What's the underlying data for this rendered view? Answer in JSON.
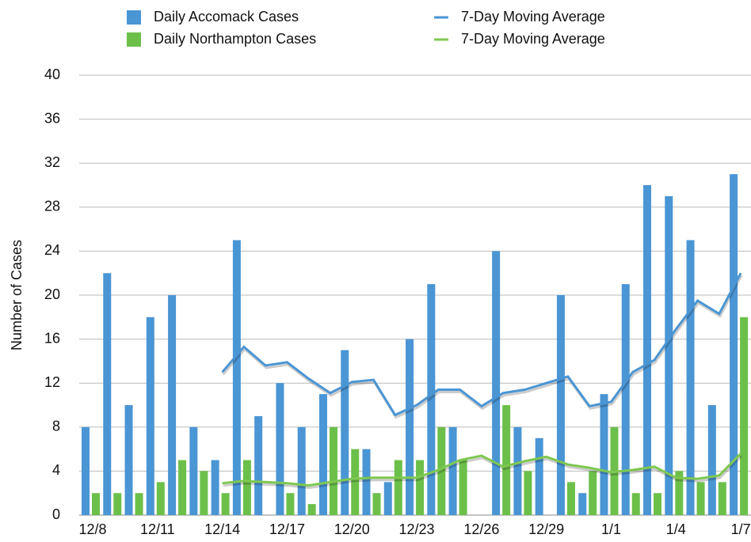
{
  "chart_data": {
    "type": "bar_line",
    "y_label": "Number of Cases",
    "categories": [
      "12/8",
      null,
      null,
      "12/11",
      null,
      null,
      "12/14",
      null,
      null,
      "12/17",
      null,
      null,
      "12/20",
      null,
      null,
      "12/23",
      null,
      null,
      "12/26",
      null,
      null,
      "12/29",
      null,
      null,
      "1/1",
      null,
      null,
      "1/4",
      null,
      null,
      "1/7"
    ],
    "series": [
      {
        "name": "Daily Accomack Cases",
        "kind": "bar",
        "color": "#4a95d4",
        "values": [
          8,
          22,
          10,
          18,
          20,
          8,
          5,
          25,
          9,
          12,
          8,
          11,
          15,
          6,
          3,
          16,
          21,
          8,
          0,
          24,
          8,
          7,
          20,
          2,
          11,
          21,
          30,
          29,
          25,
          10,
          31
        ]
      },
      {
        "name": "Daily Northampton Cases",
        "kind": "bar",
        "color": "#6cc04a",
        "values": [
          2,
          2,
          2,
          3,
          5,
          4,
          2,
          5,
          0,
          2,
          1,
          8,
          6,
          2,
          5,
          5,
          8,
          5,
          0,
          10,
          4,
          0,
          3,
          4,
          8,
          2,
          2,
          4,
          3,
          3,
          18
        ]
      },
      {
        "name": "7-Day Moving Average",
        "kind": "line",
        "color": "#4a95d4",
        "values": [
          null,
          null,
          null,
          null,
          null,
          null,
          13,
          15.3,
          13.6,
          13.9,
          12.4,
          11.1,
          12.1,
          12.3,
          9.1,
          10,
          11.4,
          11.4,
          9.9,
          11.1,
          11.4,
          12,
          12.6,
          9.9,
          10.3,
          13,
          14.1,
          16.9,
          19.5,
          18.3,
          22
        ]
      },
      {
        "name": "7-Day Moving Average",
        "kind": "line",
        "color": "#7ec850",
        "values": [
          null,
          null,
          null,
          null,
          null,
          null,
          2.9,
          3.1,
          3,
          2.9,
          2.7,
          3,
          3.3,
          3.4,
          3.4,
          3.4,
          4.1,
          5,
          5.4,
          4.4,
          4.9,
          5.3,
          4.6,
          4.3,
          3.9,
          4.1,
          4.4,
          3.4,
          3.3,
          3.6,
          5.6
        ]
      }
    ],
    "ylim": [
      0,
      40
    ],
    "yticks": [
      0,
      4,
      8,
      12,
      16,
      20,
      24,
      28,
      32,
      36,
      40
    ],
    "grid": true
  }
}
